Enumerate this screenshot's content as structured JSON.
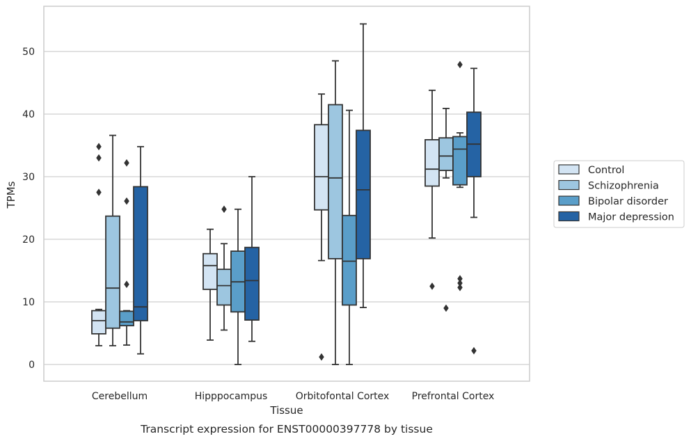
{
  "chart_data": {
    "type": "boxplot",
    "caption": "Transcript expression for ENST00000397778 by tissue",
    "xlabel": "Tissue",
    "ylabel": "TPMs",
    "ylim": [
      -2.5,
      57
    ],
    "yticks": [
      0,
      10,
      20,
      30,
      40,
      50
    ],
    "grid": "horizontal",
    "legend_position": "right",
    "categories": [
      "Cerebellum",
      "Hipppocampus",
      "Orbitofontal Cortex",
      "Prefrontal Cortex"
    ],
    "series": [
      {
        "name": "Control",
        "color": "#d3e4f3",
        "boxes": [
          {
            "whislo": 3.0,
            "q1": 4.9,
            "med": 7.0,
            "q3": 8.6,
            "whishi": 8.8,
            "fliers": [
              27.5,
              33.0,
              34.8
            ]
          },
          {
            "whislo": 3.9,
            "q1": 12.0,
            "med": 15.8,
            "q3": 17.7,
            "whishi": 21.6,
            "fliers": []
          },
          {
            "whislo": 16.6,
            "q1": 24.7,
            "med": 30.0,
            "q3": 38.3,
            "whishi": 43.2,
            "fliers": [
              1.2
            ]
          },
          {
            "whislo": 20.2,
            "q1": 28.5,
            "med": 31.2,
            "q3": 35.9,
            "whishi": 43.8,
            "fliers": [
              12.5
            ]
          }
        ]
      },
      {
        "name": "Schizophrenia",
        "color": "#9dc6e0",
        "boxes": [
          {
            "whislo": 3.0,
            "q1": 5.8,
            "med": 12.2,
            "q3": 23.7,
            "whishi": 36.6,
            "fliers": []
          },
          {
            "whislo": 5.5,
            "q1": 9.5,
            "med": 12.6,
            "q3": 15.2,
            "whishi": 19.3,
            "fliers": [
              24.8
            ]
          },
          {
            "whislo": 0.0,
            "q1": 16.9,
            "med": 29.8,
            "q3": 41.5,
            "whishi": 48.5,
            "fliers": []
          },
          {
            "whislo": 29.8,
            "q1": 31.0,
            "med": 33.3,
            "q3": 36.2,
            "whishi": 40.9,
            "fliers": [
              9.0
            ]
          }
        ]
      },
      {
        "name": "Bipolar disorder",
        "color": "#5a9ec9",
        "boxes": [
          {
            "whislo": 3.1,
            "q1": 6.2,
            "med": 6.8,
            "q3": 8.5,
            "whishi": 8.6,
            "fliers": [
              12.8,
              26.1,
              32.2
            ]
          },
          {
            "whislo": 0.0,
            "q1": 8.4,
            "med": 13.2,
            "q3": 18.1,
            "whishi": 24.8,
            "fliers": []
          },
          {
            "whislo": 0.0,
            "q1": 9.5,
            "med": 16.5,
            "q3": 23.8,
            "whishi": 40.6,
            "fliers": []
          },
          {
            "whislo": 28.3,
            "q1": 28.7,
            "med": 34.4,
            "q3": 36.4,
            "whishi": 37.0,
            "fliers": [
              12.3,
              13.0,
              13.7,
              47.9
            ]
          }
        ]
      },
      {
        "name": "Major depression",
        "color": "#2563a4",
        "boxes": [
          {
            "whislo": 1.7,
            "q1": 7.0,
            "med": 9.2,
            "q3": 28.4,
            "whishi": 34.8,
            "fliers": []
          },
          {
            "whislo": 3.7,
            "q1": 7.1,
            "med": 13.4,
            "q3": 18.7,
            "whishi": 30.0,
            "fliers": []
          },
          {
            "whislo": 9.1,
            "q1": 16.9,
            "med": 27.9,
            "q3": 37.4,
            "whishi": 54.4,
            "fliers": []
          },
          {
            "whislo": 23.5,
            "q1": 30.0,
            "med": 35.2,
            "q3": 40.3,
            "whishi": 47.3,
            "fliers": [
              2.2
            ]
          }
        ]
      }
    ]
  },
  "style": {
    "grid_color": "#cfcfcf",
    "frame_color": "#cccccc",
    "line_color": "#333333"
  }
}
